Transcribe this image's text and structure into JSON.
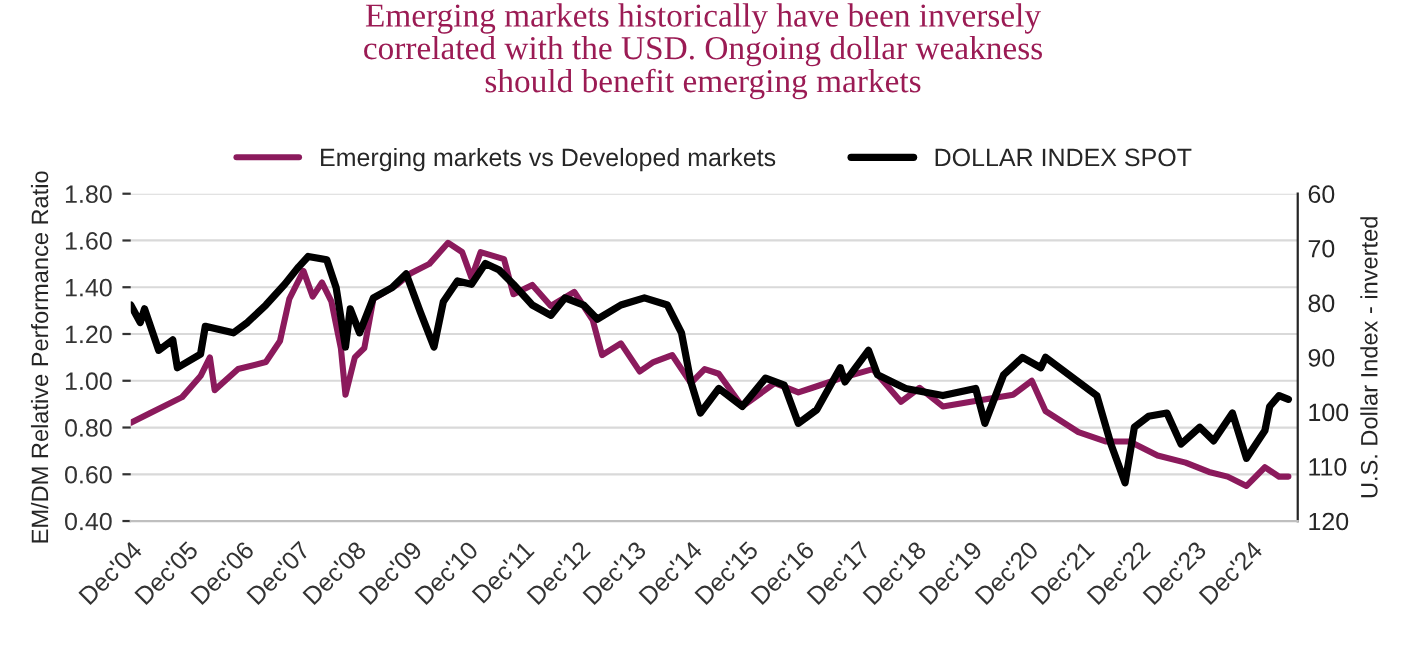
{
  "chart_data": {
    "type": "line",
    "title": "Emerging markets historically have been inversely\ncorrelated with the USD. Ongoing dollar weakness\nshould benefit emerging markets",
    "ylabel": "EM/DM Relative Performance Ratio",
    "y2label": "U.S. Dollar Index - inverted",
    "series": [
      {
        "name": "Emerging markets vs Developed markets",
        "color": "#8b1a5c",
        "x": [
          "2004-12",
          "2005-04",
          "2005-11",
          "2006-03",
          "2006-05",
          "2006-06",
          "2006-11",
          "2007-05",
          "2007-08",
          "2007-10",
          "2008-01",
          "2008-03",
          "2008-05",
          "2008-07",
          "2008-09",
          "2008-10",
          "2008-12",
          "2009-02",
          "2009-04",
          "2009-09",
          "2009-12",
          "2010-04",
          "2010-08",
          "2010-11",
          "2011-01",
          "2011-03",
          "2011-08",
          "2011-10",
          "2012-02",
          "2012-06",
          "2012-11",
          "2013-03",
          "2013-05",
          "2013-09",
          "2014-01",
          "2014-04",
          "2014-08",
          "2014-12",
          "2015-03",
          "2015-06",
          "2015-11",
          "2016-06",
          "2016-11",
          "2017-02",
          "2017-08",
          "2018-03",
          "2018-09",
          "2019-01",
          "2019-06",
          "2019-12",
          "2020-09",
          "2021-01",
          "2021-04",
          "2021-11",
          "2022-05",
          "2022-10",
          "2023-04",
          "2023-10",
          "2024-03",
          "2024-07",
          "2024-11",
          "2025-03",
          "2025-06",
          "2025-08"
        ],
        "values": [
          0.82,
          0.86,
          0.93,
          1.02,
          1.1,
          0.96,
          1.05,
          1.08,
          1.17,
          1.35,
          1.47,
          1.36,
          1.42,
          1.34,
          1.14,
          0.94,
          1.1,
          1.14,
          1.35,
          1.41,
          1.46,
          1.5,
          1.59,
          1.55,
          1.44,
          1.55,
          1.52,
          1.37,
          1.41,
          1.32,
          1.38,
          1.26,
          1.11,
          1.16,
          1.04,
          1.08,
          1.11,
          0.99,
          1.05,
          1.03,
          0.89,
          0.99,
          0.95,
          0.97,
          1.01,
          1.05,
          0.91,
          0.97,
          0.89,
          0.91,
          0.94,
          1.0,
          0.87,
          0.78,
          0.74,
          0.74,
          0.68,
          0.65,
          0.61,
          0.59,
          0.55,
          0.63,
          0.59,
          0.59
        ]
      },
      {
        "name": "DOLLAR INDEX SPOT",
        "color": "#000000",
        "axis": "y2",
        "x": [
          "2004-12",
          "2005-02",
          "2005-03",
          "2005-06",
          "2005-09",
          "2005-10",
          "2006-03",
          "2006-04",
          "2006-10",
          "2007-01",
          "2007-05",
          "2007-09",
          "2007-12",
          "2008-02",
          "2008-06",
          "2008-08",
          "2008-10",
          "2008-11",
          "2009-01",
          "2009-04",
          "2009-08",
          "2009-11",
          "2010-02",
          "2010-05",
          "2010-07",
          "2010-10",
          "2011-01",
          "2011-04",
          "2011-07",
          "2011-10",
          "2012-02",
          "2012-06",
          "2012-09",
          "2013-01",
          "2013-04",
          "2013-09",
          "2014-02",
          "2014-07",
          "2014-10",
          "2014-12",
          "2015-02",
          "2015-06",
          "2015-11",
          "2016-04",
          "2016-08",
          "2016-11",
          "2017-03",
          "2017-08",
          "2017-09",
          "2018-02",
          "2018-04",
          "2018-10",
          "2019-06",
          "2020-01",
          "2020-03",
          "2020-07",
          "2020-11",
          "2021-03",
          "2021-04",
          "2021-11",
          "2022-03",
          "2022-06",
          "2022-09",
          "2022-11",
          "2023-02",
          "2023-06",
          "2023-09",
          "2024-01",
          "2024-04",
          "2024-08",
          "2024-11",
          "2025-03",
          "2025-04",
          "2025-06",
          "2025-08"
        ],
        "values": [
          80.4,
          83.6,
          81.1,
          88.7,
          86.8,
          91.9,
          89.4,
          84.3,
          85.5,
          83.6,
          80.4,
          76.6,
          73.4,
          71.5,
          72.1,
          77.2,
          88.1,
          81.1,
          85.5,
          79.1,
          77.2,
          74.7,
          81.7,
          88.1,
          79.8,
          76.0,
          76.6,
          72.8,
          74.0,
          76.6,
          80.4,
          82.3,
          79.1,
          80.4,
          83.0,
          80.4,
          79.1,
          80.4,
          85.5,
          94.5,
          100.2,
          95.7,
          99.0,
          93.8,
          95.1,
          102.1,
          99.6,
          91.9,
          94.5,
          88.7,
          93.2,
          95.7,
          97.0,
          95.7,
          102.1,
          93.2,
          90.0,
          91.9,
          90.0,
          94.5,
          97.0,
          105.9,
          113.0,
          102.8,
          100.8,
          100.2,
          105.9,
          102.8,
          105.3,
          100.2,
          108.5,
          103.4,
          99.0,
          97.0,
          97.7
        ]
      }
    ],
    "xlim": [
      "2004-12",
      "2025-10"
    ],
    "xticks": [
      {
        "value": "2004-12",
        "label": "Dec'04"
      },
      {
        "value": "2005-12",
        "label": "Dec'05"
      },
      {
        "value": "2006-12",
        "label": "Dec'06"
      },
      {
        "value": "2007-12",
        "label": "Dec'07"
      },
      {
        "value": "2008-12",
        "label": "Dec'08"
      },
      {
        "value": "2009-12",
        "label": "Dec'09"
      },
      {
        "value": "2010-12",
        "label": "Dec'10"
      },
      {
        "value": "2011-12",
        "label": "Dec'11"
      },
      {
        "value": "2012-12",
        "label": "Dec'12"
      },
      {
        "value": "2013-12",
        "label": "Dec'13"
      },
      {
        "value": "2014-12",
        "label": "Dec'14"
      },
      {
        "value": "2015-12",
        "label": "Dec'15"
      },
      {
        "value": "2016-12",
        "label": "Dec'16"
      },
      {
        "value": "2017-12",
        "label": "Dec'17"
      },
      {
        "value": "2018-12",
        "label": "Dec'18"
      },
      {
        "value": "2019-12",
        "label": "Dec'19"
      },
      {
        "value": "2020-12",
        "label": "Dec'20"
      },
      {
        "value": "2021-12",
        "label": "Dec'21"
      },
      {
        "value": "2022-12",
        "label": "Dec'22"
      },
      {
        "value": "2023-12",
        "label": "Dec'23"
      },
      {
        "value": "2024-12",
        "label": "Dec'24"
      }
    ],
    "ylim": [
      0.4,
      1.8
    ],
    "yticks": [
      {
        "value": 0.4,
        "label": "0.40"
      },
      {
        "value": 0.6,
        "label": "0.60"
      },
      {
        "value": 0.8,
        "label": "0.80"
      },
      {
        "value": 1.0,
        "label": "1.00"
      },
      {
        "value": 1.2,
        "label": "1.20"
      },
      {
        "value": 1.4,
        "label": "1.40"
      },
      {
        "value": 1.6,
        "label": "1.60"
      },
      {
        "value": 1.8,
        "label": "1.80"
      }
    ],
    "y2lim": [
      120,
      60
    ],
    "y2ticks": [
      60,
      70,
      80,
      90,
      100,
      110,
      120
    ],
    "grid": "y",
    "legend": "top",
    "line_style": "solid"
  }
}
